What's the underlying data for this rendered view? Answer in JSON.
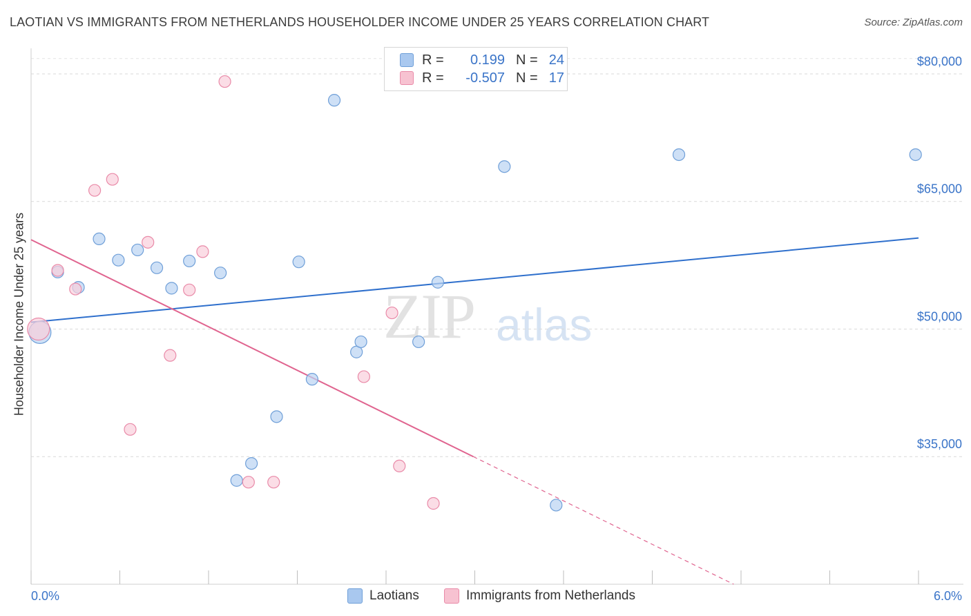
{
  "title": "LAOTIAN VS IMMIGRANTS FROM NETHERLANDS HOUSEHOLDER INCOME UNDER 25 YEARS CORRELATION CHART",
  "source": "Source: ZipAtlas.com",
  "watermark": {
    "part1": "ZIP",
    "part2": "atlas"
  },
  "legend": {
    "rows": [
      {
        "r_label": "R =",
        "r_value": "0.199",
        "n_label": "N =",
        "n_value": "24",
        "color": "#a9c8ef",
        "border": "#6f9fd8"
      },
      {
        "r_label": "R =",
        "r_value": "-0.507",
        "n_label": "N =",
        "n_value": "17",
        "color": "#f7c2d1",
        "border": "#e98aa8"
      }
    ]
  },
  "bottom_legend": [
    {
      "label": "Laotians",
      "color": "#a9c8ef",
      "border": "#6f9fd8"
    },
    {
      "label": "Immigrants from Netherlands",
      "color": "#f7c2d1",
      "border": "#e98aa8"
    }
  ],
  "chart_data": {
    "type": "scatter",
    "title": "LAOTIAN VS IMMIGRANTS FROM NETHERLANDS HOUSEHOLDER INCOME UNDER 25 YEARS CORRELATION CHART",
    "xlabel": "",
    "ylabel": "Householder Income Under 25 years",
    "xlim": [
      0,
      6
    ],
    "ylim": [
      20000,
      83000
    ],
    "x_tick_labels": [
      "0.0%",
      "6.0%"
    ],
    "y_ticks": [
      35000,
      50000,
      65000,
      80000
    ],
    "y_tick_labels": [
      "$35,000",
      "$50,000",
      "$65,000",
      "$80,000"
    ],
    "grid": "horizontal dashed",
    "series": [
      {
        "name": "Laotians",
        "color": "#6f9fd8",
        "fill": "#b9d3f2",
        "trend": {
          "x": [
            0,
            6
          ],
          "y": [
            50800,
            60700
          ],
          "color": "#2e6fcc"
        },
        "points": [
          {
            "x": 0.06,
            "y": 49600,
            "big": true
          },
          {
            "x": 0.18,
            "y": 56700
          },
          {
            "x": 0.32,
            "y": 54900
          },
          {
            "x": 0.46,
            "y": 60600
          },
          {
            "x": 0.59,
            "y": 58100
          },
          {
            "x": 0.72,
            "y": 59300
          },
          {
            "x": 0.85,
            "y": 57200
          },
          {
            "x": 0.95,
            "y": 54800
          },
          {
            "x": 1.07,
            "y": 58000
          },
          {
            "x": 1.28,
            "y": 56600
          },
          {
            "x": 1.39,
            "y": 32200
          },
          {
            "x": 1.49,
            "y": 34200
          },
          {
            "x": 1.66,
            "y": 39700
          },
          {
            "x": 1.81,
            "y": 57900
          },
          {
            "x": 1.9,
            "y": 44100
          },
          {
            "x": 2.05,
            "y": 76900
          },
          {
            "x": 2.2,
            "y": 47300
          },
          {
            "x": 2.23,
            "y": 48500
          },
          {
            "x": 2.62,
            "y": 48500
          },
          {
            "x": 2.75,
            "y": 55500
          },
          {
            "x": 3.2,
            "y": 69100
          },
          {
            "x": 3.55,
            "y": 29300
          },
          {
            "x": 4.38,
            "y": 70500
          },
          {
            "x": 5.98,
            "y": 70500
          }
        ]
      },
      {
        "name": "Immigrants from Netherlands",
        "color": "#e98aa8",
        "fill": "#f9cfdb",
        "trend": {
          "x": [
            0,
            2.99
          ],
          "y": [
            60500,
            35000
          ],
          "dash_to": [
            4.75,
            20000
          ],
          "color": "#e0648f"
        },
        "points": [
          {
            "x": 0.05,
            "y": 50000,
            "big": true
          },
          {
            "x": 0.18,
            "y": 56900
          },
          {
            "x": 0.3,
            "y": 54700
          },
          {
            "x": 0.43,
            "y": 66300
          },
          {
            "x": 0.55,
            "y": 67600
          },
          {
            "x": 0.67,
            "y": 38200
          },
          {
            "x": 0.79,
            "y": 60200
          },
          {
            "x": 0.94,
            "y": 46900
          },
          {
            "x": 1.07,
            "y": 54600
          },
          {
            "x": 1.16,
            "y": 59100
          },
          {
            "x": 1.31,
            "y": 79100
          },
          {
            "x": 1.47,
            "y": 32000
          },
          {
            "x": 1.64,
            "y": 32000
          },
          {
            "x": 2.25,
            "y": 44400
          },
          {
            "x": 2.44,
            "y": 51900
          },
          {
            "x": 2.49,
            "y": 33900
          },
          {
            "x": 2.72,
            "y": 29500
          }
        ]
      }
    ]
  }
}
